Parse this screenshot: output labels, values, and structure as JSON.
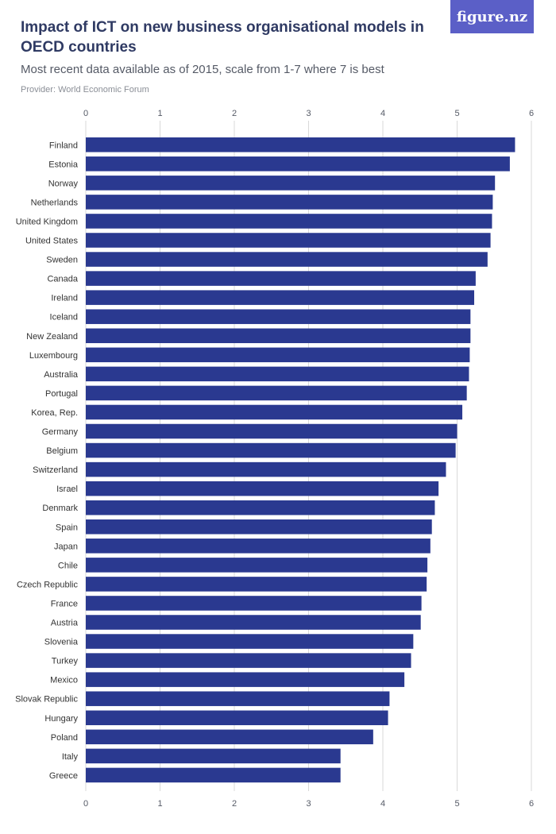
{
  "header": {
    "title": "Impact of ICT on new business organisational models in OECD countries",
    "subtitle": "Most recent data available as of 2015, scale from 1-7 where 7 is best",
    "provider": "Provider: World Economic Forum",
    "logo": "figure.nz"
  },
  "chart_data": {
    "type": "bar",
    "orientation": "horizontal",
    "title": "Impact of ICT on new business organisational models in OECD countries",
    "subtitle": "Most recent data available as of 2015, scale from 1-7 where 7 is best",
    "xlabel": "",
    "ylabel": "",
    "xlim": [
      0,
      6
    ],
    "ticks": [
      0,
      1,
      2,
      3,
      4,
      5,
      6
    ],
    "grid": true,
    "bar_color": "#2a3990",
    "categories": [
      "Finland",
      "Estonia",
      "Norway",
      "Netherlands",
      "United Kingdom",
      "United States",
      "Sweden",
      "Canada",
      "Ireland",
      "Iceland",
      "New Zealand",
      "Luxembourg",
      "Australia",
      "Portugal",
      "Korea, Rep.",
      "Germany",
      "Belgium",
      "Switzerland",
      "Israel",
      "Denmark",
      "Spain",
      "Japan",
      "Chile",
      "Czech Republic",
      "France",
      "Austria",
      "Slovenia",
      "Turkey",
      "Mexico",
      "Slovak Republic",
      "Hungary",
      "Poland",
      "Italy",
      "Greece"
    ],
    "values": [
      5.78,
      5.71,
      5.51,
      5.48,
      5.47,
      5.45,
      5.41,
      5.25,
      5.23,
      5.18,
      5.18,
      5.17,
      5.16,
      5.13,
      5.07,
      5.0,
      4.98,
      4.85,
      4.75,
      4.7,
      4.66,
      4.64,
      4.6,
      4.59,
      4.52,
      4.51,
      4.41,
      4.38,
      4.29,
      4.09,
      4.07,
      3.87,
      3.43,
      3.43
    ]
  }
}
